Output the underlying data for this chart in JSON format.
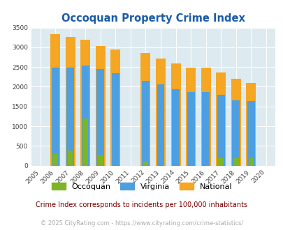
{
  "title": "Occoquan Property Crime Index",
  "years": [
    2005,
    2006,
    2007,
    2008,
    2009,
    2010,
    2011,
    2012,
    2013,
    2014,
    2015,
    2016,
    2017,
    2018,
    2019,
    2020
  ],
  "occoquan": [
    0,
    300,
    390,
    1200,
    270,
    0,
    0,
    110,
    0,
    0,
    0,
    0,
    190,
    185,
    195,
    0
  ],
  "virginia": [
    0,
    2490,
    2490,
    2540,
    2450,
    2340,
    0,
    2150,
    2060,
    1940,
    1860,
    1860,
    1800,
    1650,
    1630,
    0
  ],
  "national": [
    0,
    3340,
    3260,
    3200,
    3040,
    2950,
    0,
    2860,
    2720,
    2600,
    2490,
    2480,
    2360,
    2200,
    2100,
    0
  ],
  "color_occoquan": "#7db526",
  "color_virginia": "#4d9fe0",
  "color_national": "#f5a623",
  "bg_color": "#ddeaf0",
  "ylim": [
    0,
    3500
  ],
  "yticks": [
    0,
    500,
    1000,
    1500,
    2000,
    2500,
    3000,
    3500
  ],
  "subtitle": "Crime Index corresponds to incidents per 100,000 inhabitants",
  "footer": "© 2025 CityRating.com - https://www.cityrating.com/crime-statistics/",
  "title_color": "#1a5ca8",
  "subtitle_color": "#7a0000",
  "footer_color": "#aaaaaa",
  "fig_width": 4.06,
  "fig_height": 3.3,
  "dpi": 100
}
